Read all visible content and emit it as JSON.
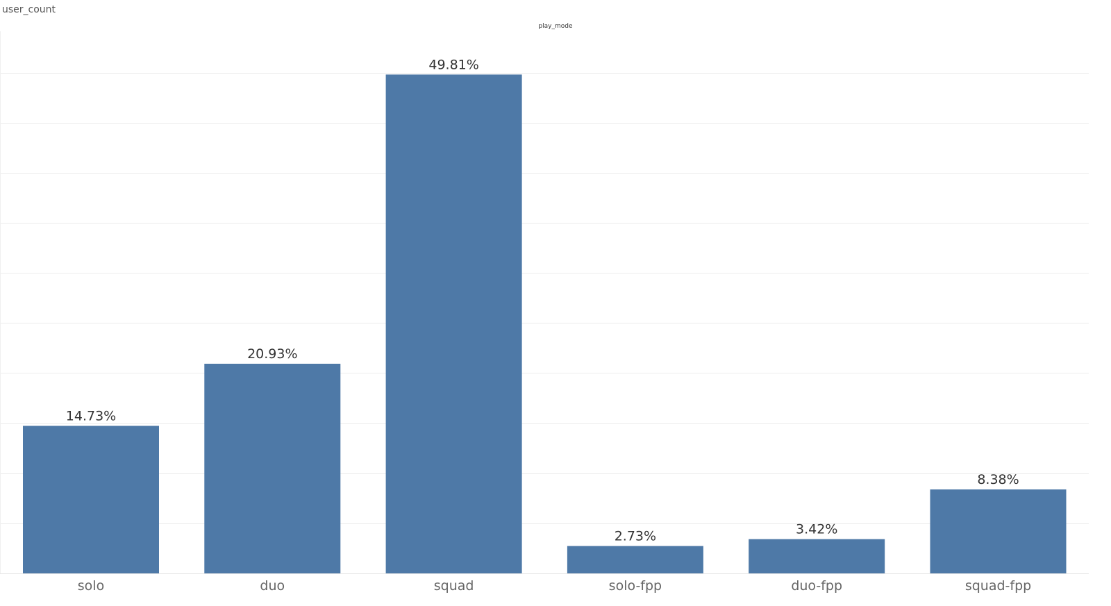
{
  "sheet": {
    "title": "user_count",
    "column_header": "play_mode"
  },
  "chart_data": {
    "type": "bar",
    "title": "",
    "xlabel": "play_mode",
    "ylabel": "user_count",
    "categories": [
      "solo",
      "duo",
      "squad",
      "solo-fpp",
      "duo-fpp",
      "squad-fpp"
    ],
    "values": [
      14.73,
      20.93,
      49.81,
      2.73,
      3.42,
      8.38
    ],
    "data_labels": [
      "14.73%",
      "20.93%",
      "49.81%",
      "2.73%",
      "3.42%",
      "8.38%"
    ],
    "ylim": [
      0,
      55
    ],
    "grid": true,
    "legend": "none",
    "bar_color": "#4e79a7",
    "grid_color": "#ececec"
  }
}
